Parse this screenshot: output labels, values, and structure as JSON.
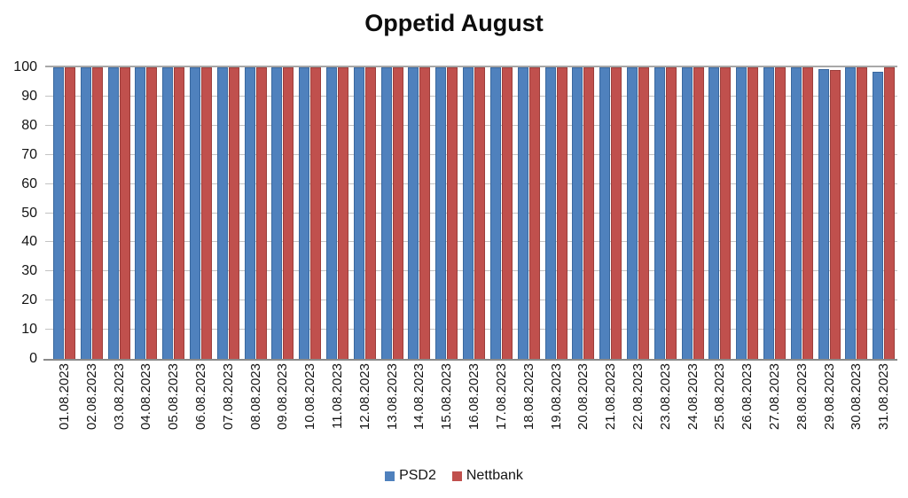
{
  "chart_data": {
    "type": "bar",
    "title": "Oppetid August",
    "categories": [
      "01.08.2023",
      "02.08.2023",
      "03.08.2023",
      "04.08.2023",
      "05.08.2023",
      "06.08.2023",
      "07.08.2023",
      "08.08.2023",
      "09.08.2023",
      "10.08.2023",
      "11.08.2023",
      "12.08.2023",
      "13.08.2023",
      "14.08.2023",
      "15.08.2023",
      "16.08.2023",
      "17.08.2023",
      "18.08.2023",
      "19.08.2023",
      "20.08.2023",
      "21.08.2023",
      "22.08.2023",
      "23.08.2023",
      "24.08.2023",
      "25.08.2023",
      "26.08.2023",
      "27.08.2023",
      "28.08.2023",
      "29.08.2023",
      "30.08.2023",
      "31.08.2023"
    ],
    "series": [
      {
        "name": "PSD2",
        "color": "#4F81BD",
        "border_color": "#3A689E",
        "values": [
          100,
          100,
          100,
          100,
          100,
          100,
          100,
          100,
          100,
          100,
          100,
          100,
          100,
          100,
          100,
          100,
          100,
          100,
          100,
          100,
          100,
          100,
          100,
          100,
          100,
          100,
          100,
          100,
          99.5,
          100,
          98.5
        ]
      },
      {
        "name": "Nettbank",
        "color": "#C0504D",
        "border_color": "#9C3E3B",
        "values": [
          100,
          100,
          100,
          100,
          100,
          100,
          100,
          100,
          100,
          100,
          100,
          100,
          100,
          100,
          100,
          100,
          100,
          100,
          100,
          100,
          100,
          100,
          100,
          100,
          100,
          100,
          100,
          100,
          99,
          100,
          100
        ]
      }
    ],
    "xlabel": "",
    "ylabel": "",
    "ylim": [
      0,
      100
    ],
    "ytick_step": 10,
    "ytick_labels": [
      "0",
      "10",
      "20",
      "30",
      "40",
      "50",
      "60",
      "70",
      "80",
      "90",
      "100"
    ],
    "grid": true,
    "gridline_color": "#C3C3C3",
    "axis_line_color": "#8A8A8A",
    "legend_position": "bottom"
  }
}
